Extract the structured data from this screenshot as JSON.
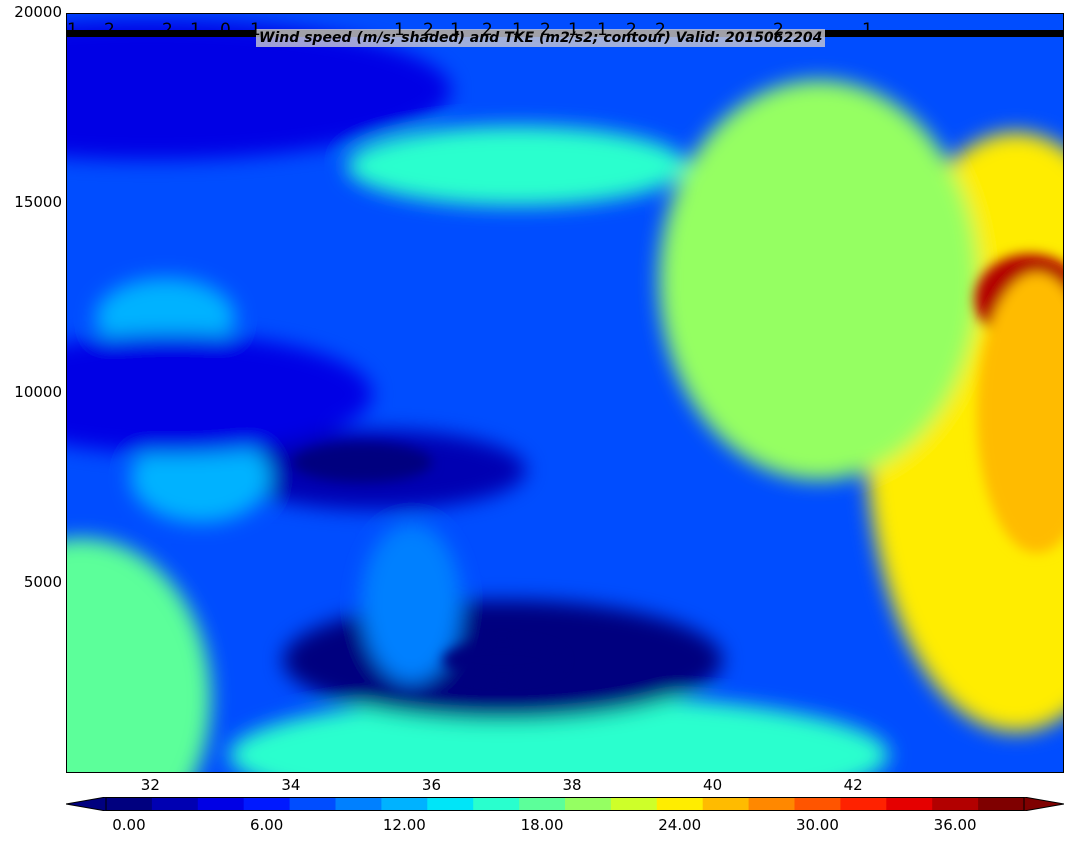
{
  "title": "Wind speed (m/s; shaded) and TKE (m2/s2; contour) Valid: 2015062204",
  "chart_data": {
    "type": "contourf",
    "xlim": [
      30.8,
      45.0
    ],
    "ylim": [
      0,
      20000
    ],
    "x_ticks": [
      "32",
      "34",
      "36",
      "38",
      "40",
      "42"
    ],
    "x_tick_values": [
      32,
      34,
      36,
      38,
      40,
      42
    ],
    "y_ticks": [
      "5000",
      "10000",
      "15000",
      "20000"
    ],
    "y_tick_values": [
      5000,
      10000,
      15000,
      20000
    ],
    "colorbar": {
      "levels": [
        0,
        2,
        4,
        6,
        8,
        10,
        12,
        14,
        16,
        18,
        20,
        22,
        24,
        26,
        28,
        30,
        32,
        34,
        36,
        38,
        40
      ],
      "tick_labels": [
        "0.00",
        "6.00",
        "12.00",
        "18.00",
        "24.00",
        "30.00",
        "36.00"
      ],
      "tick_values": [
        0,
        6,
        12,
        18,
        24,
        30,
        36
      ],
      "colors": [
        "#00007f",
        "#0000b2",
        "#0000e5",
        "#0019ff",
        "#004dff",
        "#0080ff",
        "#00b2ff",
        "#00e5f8",
        "#29ffce",
        "#5cff9a",
        "#95ff62",
        "#ceff29",
        "#ffed00",
        "#ffbb00",
        "#ff8800",
        "#ff5500",
        "#ff2200",
        "#e50000",
        "#b20000",
        "#7f0000"
      ],
      "extend": "both",
      "under_color": "#00007f",
      "over_color": "#7f0000"
    },
    "tke_contour_labels": [
      "1",
      "2",
      "2",
      "1",
      "0",
      "1",
      "1",
      "2",
      "1",
      "2",
      "1",
      "2",
      "1",
      "1",
      "2",
      "2",
      "2",
      "1"
    ],
    "wind_speed_features": [
      {
        "x": 44.3,
        "y": 12500,
        "value": 34
      },
      {
        "x": 44.3,
        "y": 9000,
        "value": 25
      },
      {
        "x": 41.5,
        "y": 13000,
        "value": 20
      },
      {
        "x": 37.8,
        "y": 500,
        "value": 17
      },
      {
        "x": 31.0,
        "y": 2000,
        "value": 18
      },
      {
        "x": 37.0,
        "y": 3000,
        "value": 1
      },
      {
        "x": 35.2,
        "y": 8000,
        "value": 2
      },
      {
        "x": 32.7,
        "y": 7800,
        "value": 12
      },
      {
        "x": 35.7,
        "y": 4500,
        "value": 11
      },
      {
        "x": 32.2,
        "y": 12000,
        "value": 13
      },
      {
        "x": 37.2,
        "y": 16000,
        "value": 16
      },
      {
        "x": 32.0,
        "y": 18000,
        "value": 4
      },
      {
        "x": 32.3,
        "y": 10000,
        "value": 5
      }
    ]
  }
}
